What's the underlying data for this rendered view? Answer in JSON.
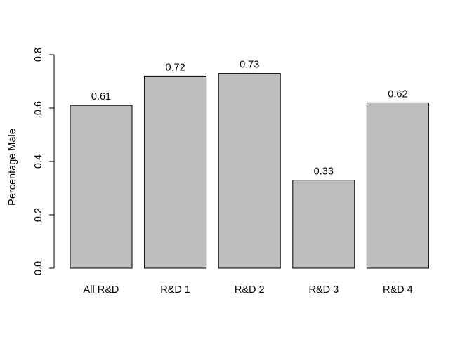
{
  "chart_data": {
    "type": "bar",
    "title": "",
    "xlabel": "",
    "ylabel": "Percentage Male",
    "categories": [
      "All R&D",
      "R&D 1",
      "R&D 2",
      "R&D 3",
      "R&D 4"
    ],
    "values": [
      0.61,
      0.72,
      0.73,
      0.33,
      0.62
    ],
    "data_labels": [
      "0.61",
      "0.72",
      "0.73",
      "0.33",
      "0.62"
    ],
    "yticks": [
      0.0,
      0.2,
      0.4,
      0.6,
      0.8
    ],
    "ytick_labels": [
      "0.0",
      "0.2",
      "0.4",
      "0.6",
      "0.8"
    ],
    "ylim": [
      0,
      0.8
    ],
    "grid": false,
    "legend": "none",
    "bar_color": "#bebebe",
    "border_color": "#000000"
  }
}
